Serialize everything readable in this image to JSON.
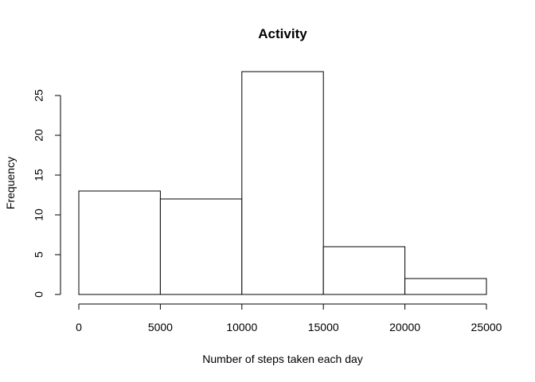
{
  "chart_data": {
    "type": "bar",
    "title": "Activity",
    "xlabel": "Number of steps taken each day",
    "ylabel": "Frequency",
    "bins": [
      {
        "from": 0,
        "to": 5000,
        "count": 13
      },
      {
        "from": 5000,
        "to": 10000,
        "count": 12
      },
      {
        "from": 10000,
        "to": 15000,
        "count": 28
      },
      {
        "from": 15000,
        "to": 20000,
        "count": 6
      },
      {
        "from": 20000,
        "to": 25000,
        "count": 2
      }
    ],
    "xlim": [
      0,
      25000
    ],
    "ylim": [
      0,
      28
    ],
    "xticks": [
      0,
      5000,
      10000,
      15000,
      20000,
      25000
    ],
    "yticks": [
      0,
      5,
      10,
      15,
      20,
      25
    ],
    "grid": false,
    "bar_fill": "#ffffff",
    "bar_stroke": "#000000"
  }
}
